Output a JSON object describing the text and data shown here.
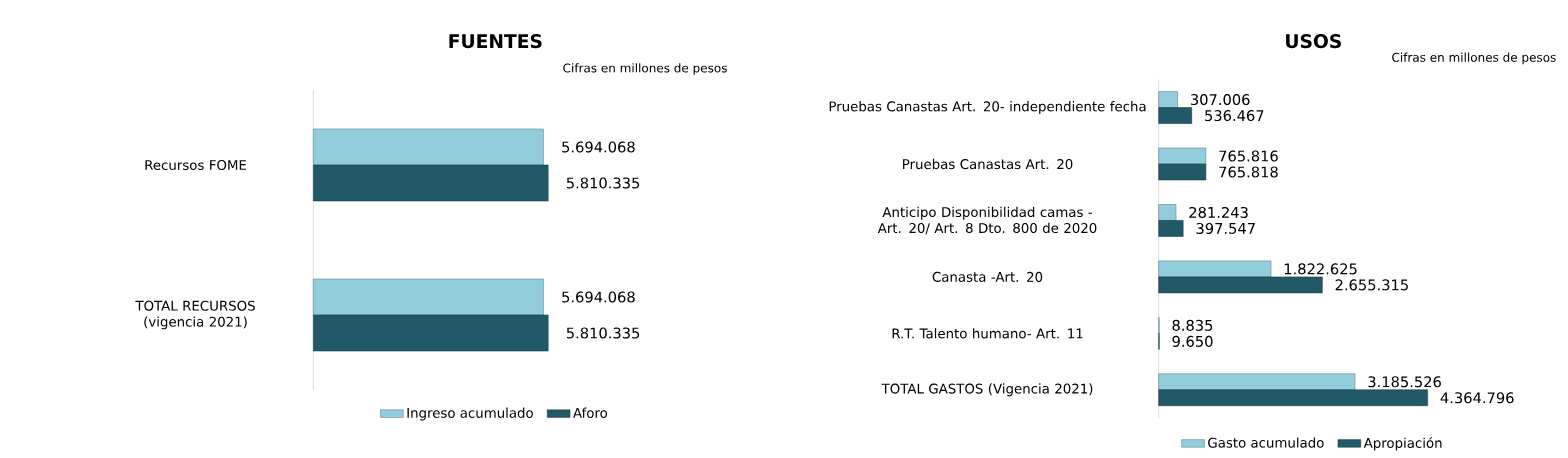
{
  "chart_data": [
    {
      "type": "bar",
      "orientation": "horizontal",
      "title": "FUENTES",
      "annotations": [
        "Cifras en millones de pesos"
      ],
      "categories": [
        "Recursos FOME",
        "TOTAL RECURSOS (vigencia 2021)"
      ],
      "legend": "bottom",
      "series": [
        {
          "name": "Ingreso acumulado",
          "color": "#92cddc",
          "values": [
            5694068,
            5694068
          ],
          "value_labels": [
            "5.694.068",
            "5.694.068"
          ]
        },
        {
          "name": "Aforo",
          "color": "#215968",
          "values": [
            5810335,
            5810335
          ],
          "value_labels": [
            "5.810.335",
            "5.810.335"
          ]
        }
      ]
    },
    {
      "type": "bar",
      "orientation": "horizontal",
      "title": "USOS",
      "annotations": [
        "Cifras en millones de pesos"
      ],
      "categories": [
        "Pruebas Canastas Art. 20- independiente fecha",
        "Pruebas Canastas Art. 20",
        "Anticipo Disponibilidad camas - Art. 20/ Art. 8 Dto. 800 de 2020",
        "Canasta -Art. 20",
        "R.T. Talento humano- Art. 11",
        "TOTAL GASTOS (Vigencia 2021)"
      ],
      "legend": "bottom",
      "series": [
        {
          "name": "Gasto acumulado",
          "color": "#92cddc",
          "values": [
            307006,
            765816,
            281243,
            1822625,
            8835,
            3185526
          ],
          "value_labels": [
            "307.006",
            "765.816",
            "281.243",
            "1.822.625",
            "8.835",
            "3.185.526"
          ]
        },
        {
          "name": "Apropiación",
          "color": "#215968",
          "values": [
            536467,
            765818,
            397547,
            2655315,
            9650,
            4364796
          ],
          "value_labels": [
            "536.467",
            "765.818",
            "397.547",
            "2.655.315",
            "9.650",
            "4.364.796"
          ]
        }
      ]
    }
  ]
}
